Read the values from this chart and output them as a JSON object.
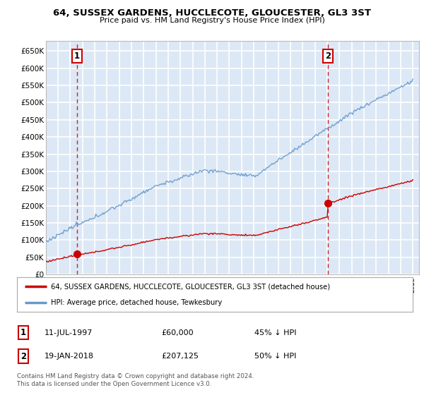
{
  "title": "64, SUSSEX GARDENS, HUCCLECOTE, GLOUCESTER, GL3 3ST",
  "subtitle": "Price paid vs. HM Land Registry's House Price Index (HPI)",
  "xlim_start": 1995.0,
  "xlim_end": 2025.5,
  "ylim_min": 0,
  "ylim_max": 680000,
  "yticks": [
    0,
    50000,
    100000,
    150000,
    200000,
    250000,
    300000,
    350000,
    400000,
    450000,
    500000,
    550000,
    600000,
    650000
  ],
  "ytick_labels": [
    "£0",
    "£50K",
    "£100K",
    "£150K",
    "£200K",
    "£250K",
    "£300K",
    "£350K",
    "£400K",
    "£450K",
    "£500K",
    "£550K",
    "£600K",
    "£650K"
  ],
  "sale1_x": 1997.53,
  "sale1_y": 60000,
  "sale1_label": "1",
  "sale1_date": "11-JUL-1997",
  "sale1_price": "£60,000",
  "sale1_hpi": "45% ↓ HPI",
  "sale2_x": 2018.05,
  "sale2_y": 207125,
  "sale2_label": "2",
  "sale2_date": "19-JAN-2018",
  "sale2_price": "£207,125",
  "sale2_hpi": "50% ↓ HPI",
  "legend_line1": "64, SUSSEX GARDENS, HUCCLECOTE, GLOUCESTER, GL3 3ST (detached house)",
  "legend_line2": "HPI: Average price, detached house, Tewkesbury",
  "footer1": "Contains HM Land Registry data © Crown copyright and database right 2024.",
  "footer2": "This data is licensed under the Open Government Licence v3.0.",
  "line_red": "#cc0000",
  "line_blue": "#6699cc",
  "bg_color": "#dce8f5",
  "grid_color": "#ffffff",
  "dashed_line_color": "#cc0000"
}
